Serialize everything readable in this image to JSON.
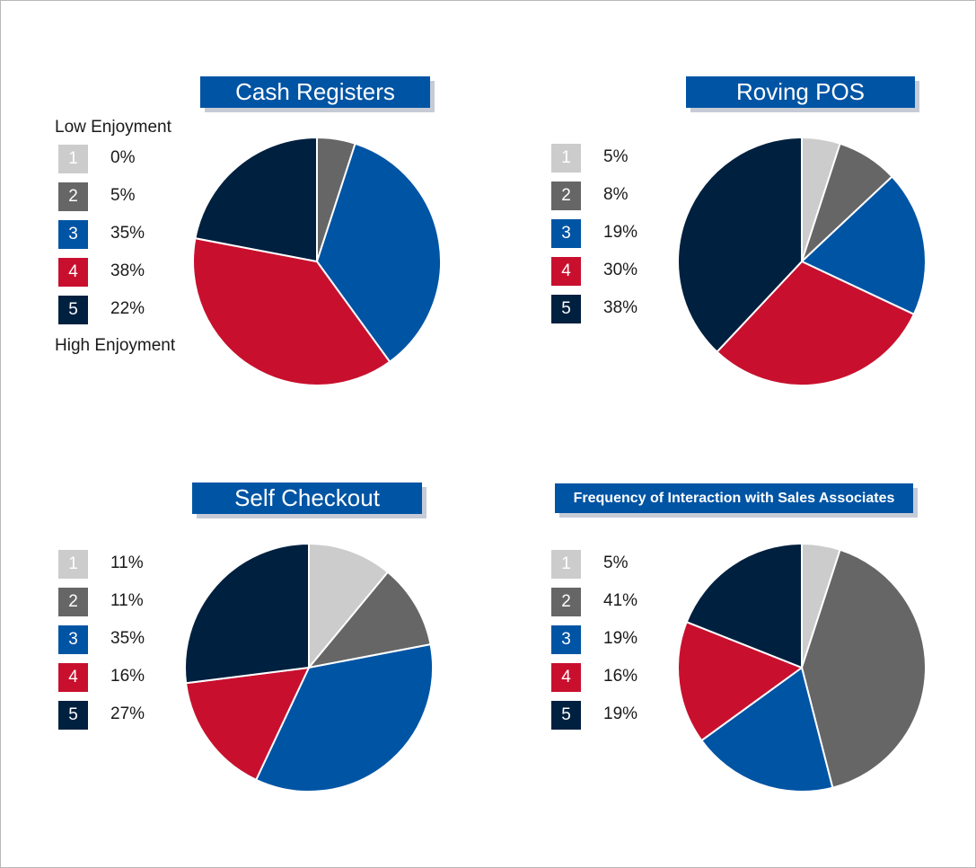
{
  "colors": [
    "#cccccc",
    "#666666",
    "#0054a4",
    "#c8102e",
    "#00203f"
  ],
  "chart_data": [
    {
      "type": "pie",
      "title": "Cash Registers",
      "categories": [
        "1",
        "2",
        "3",
        "4",
        "5"
      ],
      "values": [
        0,
        5,
        35,
        38,
        22
      ],
      "value_labels": [
        "0%",
        "5%",
        "35%",
        "38%",
        "22%"
      ],
      "scale_top_label": "Low Enjoyment",
      "scale_bottom_label": "High Enjoyment",
      "legend": "left"
    },
    {
      "type": "pie",
      "title": "Roving POS",
      "categories": [
        "1",
        "2",
        "3",
        "4",
        "5"
      ],
      "values": [
        5,
        8,
        19,
        30,
        38
      ],
      "value_labels": [
        "5%",
        "8%",
        "19%",
        "30%",
        "38%"
      ],
      "legend": "left"
    },
    {
      "type": "pie",
      "title": "Self Checkout",
      "categories": [
        "1",
        "2",
        "3",
        "4",
        "5"
      ],
      "values": [
        11,
        11,
        35,
        16,
        27
      ],
      "value_labels": [
        "11%",
        "11%",
        "35%",
        "16%",
        "27%"
      ],
      "legend": "left"
    },
    {
      "type": "pie",
      "title": "Frequency of Interaction with Sales Associates",
      "categories": [
        "1",
        "2",
        "3",
        "4",
        "5"
      ],
      "values": [
        5,
        41,
        19,
        16,
        19
      ],
      "value_labels": [
        "5%",
        "41%",
        "19%",
        "16%",
        "19%"
      ],
      "legend": "left"
    }
  ]
}
